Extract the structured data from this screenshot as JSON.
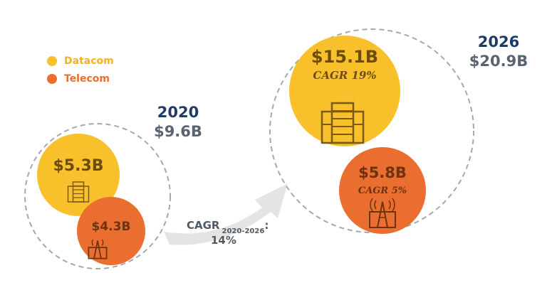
{
  "colors": {
    "datacom": "#f8c12c",
    "telecom": "#ea6e2f",
    "year": "#1f3b6a",
    "total": "#5a6470",
    "value_text": "#6e4c10",
    "dash": "#a8a8a8",
    "arrow": "#e4e4e4"
  },
  "legend": [
    {
      "label": "Datacom",
      "color": "#f8c12c"
    },
    {
      "label": "Telecom",
      "color": "#ea6e2f"
    }
  ],
  "chart_data": {
    "type": "bubble",
    "series_names": [
      "Datacom",
      "Telecom"
    ],
    "groups": [
      {
        "year": "2020",
        "total_label": "$9.6B",
        "total": 9.6,
        "datacom": {
          "label": "$5.3B",
          "value": 5.3
        },
        "telecom": {
          "label": "$4.3B",
          "value": 4.3
        }
      },
      {
        "year": "2026",
        "total_label": "$20.9B",
        "total": 20.9,
        "datacom": {
          "label": "$15.1B",
          "value": 15.1,
          "cagr_label": "CAGR 19%"
        },
        "telecom": {
          "label": "$5.8B",
          "value": 5.8,
          "cagr_label": "CAGR 5%"
        }
      }
    ],
    "growth_arrow": {
      "label": "CAGR",
      "sub": "2020-2026",
      "suffix": ":",
      "value_label": "14%"
    }
  },
  "icons": {
    "datacom": "server-rack-icon",
    "telecom": "cell-tower-icon"
  }
}
